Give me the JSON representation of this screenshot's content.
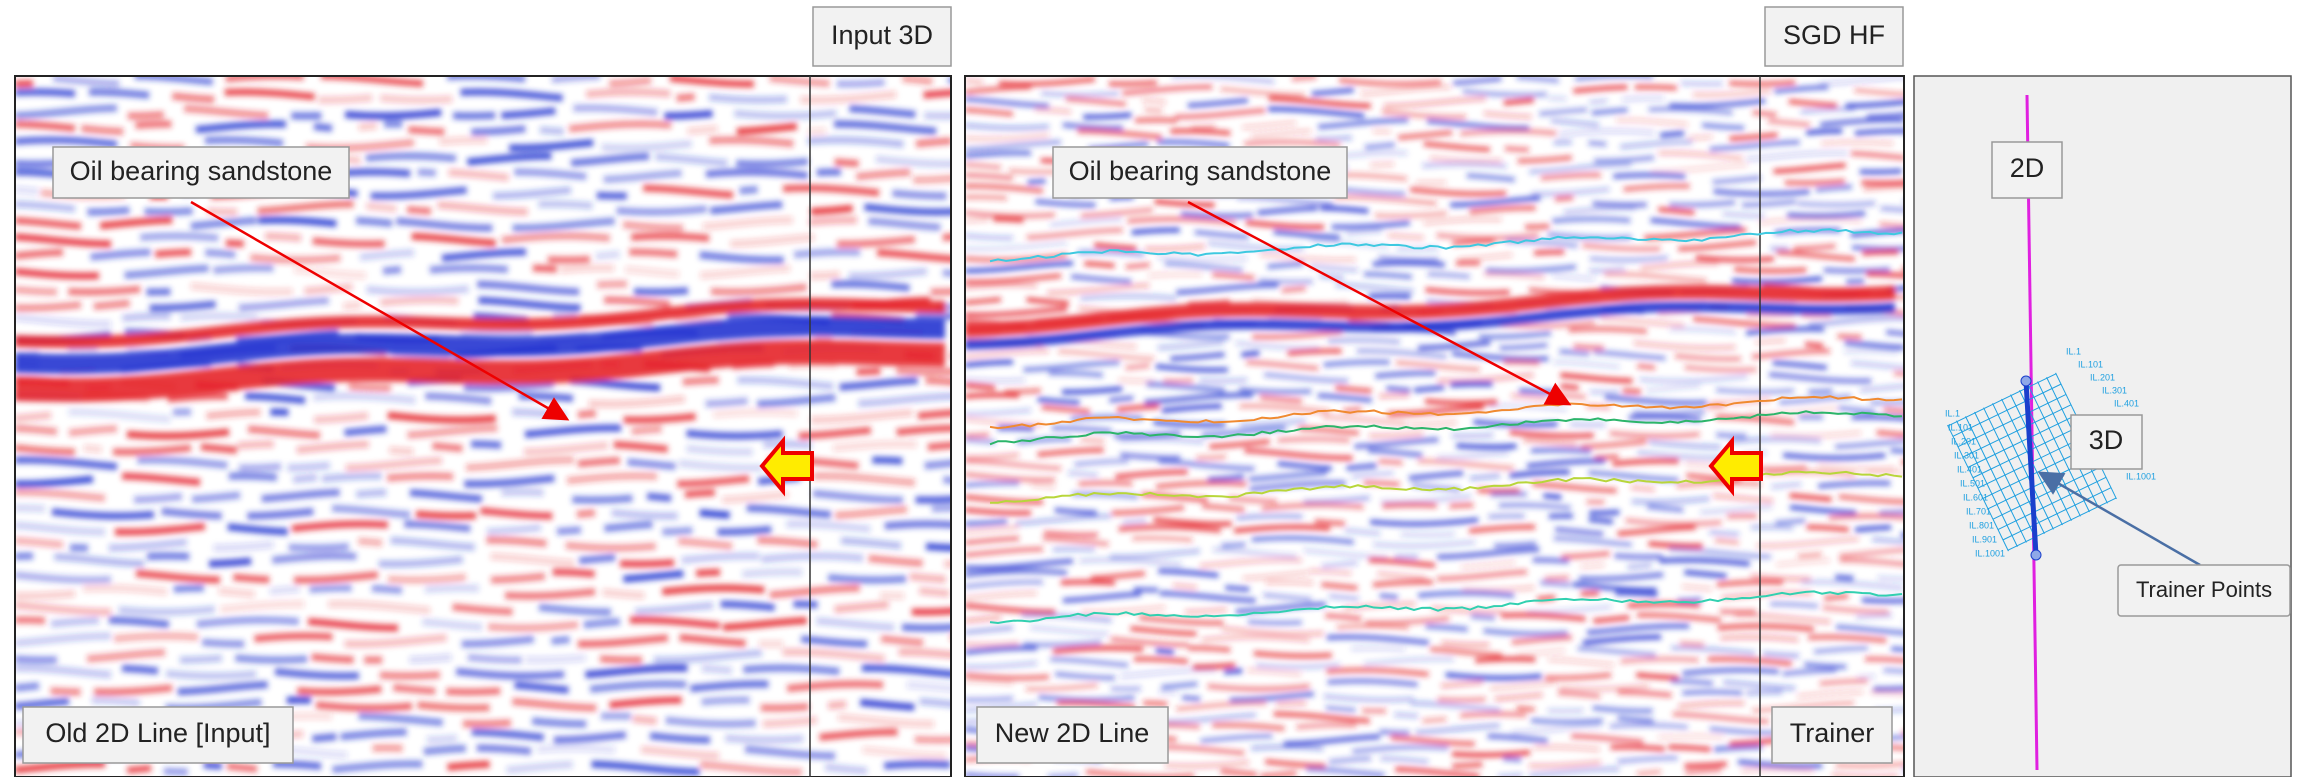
{
  "panels": [
    {
      "corner_label": "Input 3D",
      "callout": "Oil bearing sandstone",
      "caption": "Old 2D Line [Input]"
    },
    {
      "corner_label": "SGD HF",
      "callout": "Oil bearing sandstone",
      "caption": "New 2D Line",
      "inset_label": "Trainer"
    }
  ],
  "basemap": {
    "line_label": "2D",
    "survey_label": "3D",
    "pointer_label": "Trainer Points",
    "inline_labels": [
      "IL.1",
      "IL.101",
      "IL.201",
      "IL.301",
      "IL.401",
      "IL.501",
      "IL.601",
      "IL.701",
      "IL.801",
      "IL.901",
      "IL.1001"
    ],
    "inline_labels_right": [
      "IL.1",
      "IL.101",
      "IL.201",
      "IL.301",
      "IL.401",
      "IL.1001"
    ]
  }
}
